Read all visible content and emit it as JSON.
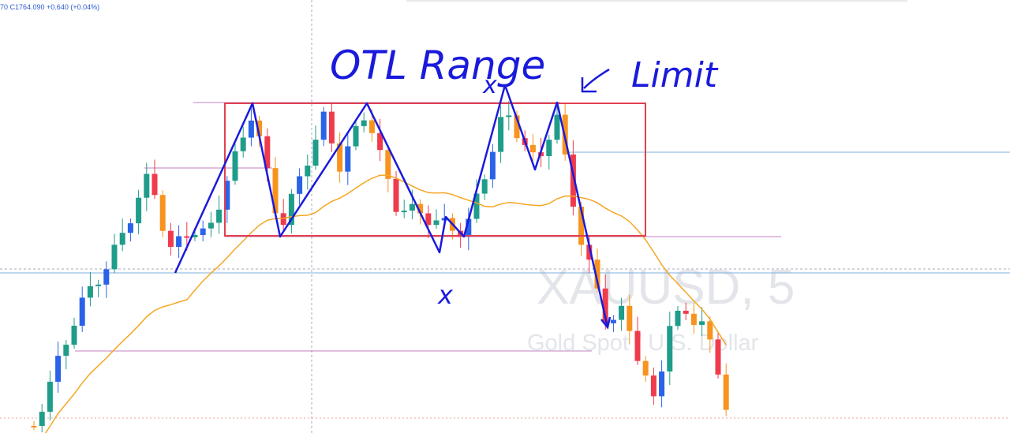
{
  "header": {
    "ohlc": "70 C1764.090 +0.640 (+0.04%)"
  },
  "watermark": {
    "symbol": "XAUUSD, 5",
    "description": "Gold Spot / U.S. Dollar"
  },
  "annotations": {
    "title": "OTL Range",
    "limit": "Limit",
    "mark_top": "x",
    "mark_bottom": "x"
  }
}
